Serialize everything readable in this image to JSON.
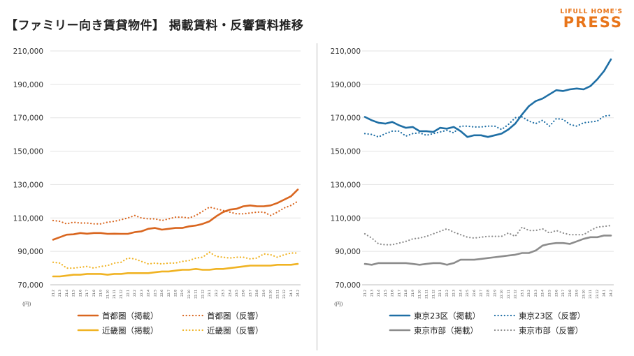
{
  "title": "【ファミリー向き賃貸物件】 掲載賃料・反響賃料推移",
  "logo": {
    "top": "LIFULL HOME'S",
    "bottom": "PRESS",
    "color": "#e8751a"
  },
  "chart_data": [
    {
      "type": "line",
      "unit": "(円)",
      "ylim": [
        70000,
        210000
      ],
      "yticks": [
        "70,000",
        "90,000",
        "110,000",
        "130,000",
        "150,000",
        "170,000",
        "190,000",
        "210,000"
      ],
      "categories": [
        "21.2",
        "21.3",
        "21.4",
        "21.5",
        "21.6",
        "21.7",
        "21.8",
        "21.9",
        "21.10",
        "21.11",
        "21.12",
        "22.1",
        "22.2",
        "22.3",
        "22.4",
        "22.5",
        "22.6",
        "22.7",
        "22.8",
        "22.9",
        "22.10",
        "22.11",
        "22.12",
        "23.1",
        "23.2",
        "23.3",
        "23.4",
        "23.5",
        "23.6",
        "23.7",
        "23.8",
        "23.9",
        "23.10",
        "23.11",
        "23.12",
        "24.1",
        "24.2"
      ],
      "series": [
        {
          "name": "首都圏（掲載）",
          "color": "#d9661f",
          "style": "solid",
          "values": [
            97000,
            98500,
            100000,
            100200,
            101000,
            100600,
            101000,
            101000,
            100500,
            100600,
            100500,
            100500,
            101500,
            102000,
            103500,
            104000,
            103000,
            103500,
            104000,
            104000,
            105000,
            105500,
            106500,
            108000,
            111000,
            113500,
            115000,
            115500,
            117000,
            117500,
            117000,
            117000,
            117500,
            119000,
            121000,
            123000,
            127000
          ]
        },
        {
          "name": "首都圏（反響）",
          "color": "#d9661f",
          "style": "dotted",
          "values": [
            108500,
            108000,
            106500,
            107500,
            107000,
            107000,
            106500,
            106500,
            107500,
            108000,
            109000,
            110000,
            111500,
            110000,
            109500,
            109500,
            108500,
            109500,
            110500,
            110500,
            110000,
            111500,
            114000,
            116500,
            115500,
            114500,
            113500,
            112500,
            112500,
            113000,
            113500,
            113500,
            111500,
            113500,
            116000,
            117500,
            120000
          ]
        },
        {
          "name": "近畿圏（掲載）",
          "color": "#f0b323",
          "style": "solid",
          "values": [
            75000,
            75000,
            75500,
            76000,
            76000,
            76500,
            76500,
            76500,
            76000,
            76500,
            76500,
            77000,
            77000,
            77000,
            77000,
            77500,
            78000,
            78000,
            78500,
            79000,
            79000,
            79500,
            79000,
            79000,
            79500,
            79500,
            80000,
            80500,
            81000,
            81500,
            81500,
            81500,
            81500,
            82000,
            82000,
            82000,
            82500
          ]
        },
        {
          "name": "近畿圏（反響）",
          "color": "#f0b323",
          "style": "dotted",
          "values": [
            83500,
            83000,
            80000,
            80000,
            80500,
            81000,
            80000,
            81000,
            81500,
            83000,
            83500,
            86000,
            85500,
            84000,
            82500,
            83000,
            82500,
            83000,
            83000,
            84000,
            84500,
            86000,
            86500,
            89500,
            87000,
            86500,
            86000,
            86500,
            86500,
            85500,
            86000,
            88500,
            88000,
            86500,
            88000,
            89000,
            89000
          ]
        }
      ]
    },
    {
      "type": "line",
      "unit": "(円)",
      "ylim": [
        70000,
        210000
      ],
      "yticks": [
        "70,000",
        "90,000",
        "110,000",
        "130,000",
        "150,000",
        "170,000",
        "190,000",
        "210,000"
      ],
      "categories": [
        "21.2",
        "21.3",
        "21.4",
        "21.5",
        "21.6",
        "21.7",
        "21.8",
        "21.9",
        "21.10",
        "21.11",
        "21.12",
        "22.1",
        "22.2",
        "22.3",
        "22.4",
        "22.5",
        "22.6",
        "22.7",
        "22.8",
        "22.9",
        "22.10",
        "22.11",
        "22.12",
        "23.1",
        "23.2",
        "23.3",
        "23.4",
        "23.5",
        "23.6",
        "23.7",
        "23.8",
        "23.9",
        "23.10",
        "23.11",
        "23.12",
        "24.1",
        "24.2"
      ],
      "series": [
        {
          "name": "東京23区（掲載）",
          "color": "#1f6fa5",
          "style": "solid",
          "values": [
            170500,
            168500,
            167000,
            166500,
            167500,
            165500,
            164000,
            164500,
            162000,
            162000,
            161500,
            164000,
            163500,
            164500,
            162000,
            158500,
            159500,
            159500,
            158500,
            159500,
            160500,
            163000,
            166500,
            172000,
            177000,
            180000,
            181500,
            184000,
            186500,
            186000,
            187000,
            187500,
            187000,
            189000,
            193000,
            198000,
            205000
          ]
        },
        {
          "name": "東京23区（反響）",
          "color": "#1f6fa5",
          "style": "dotted",
          "values": [
            160500,
            160000,
            158500,
            160500,
            162000,
            162000,
            159000,
            160500,
            161000,
            159500,
            160500,
            161500,
            162500,
            161000,
            165000,
            165000,
            164500,
            164500,
            165000,
            165000,
            163000,
            166000,
            170000,
            170500,
            168000,
            166500,
            168500,
            165000,
            169500,
            169000,
            166000,
            165000,
            167000,
            167500,
            168000,
            171000,
            171500
          ]
        },
        {
          "name": "東京市部（掲載）",
          "color": "#8c8c8c",
          "style": "solid",
          "values": [
            82500,
            82000,
            83000,
            83000,
            83000,
            83000,
            83000,
            82500,
            82000,
            82500,
            83000,
            83000,
            82000,
            83000,
            85000,
            85000,
            85000,
            85500,
            86000,
            86500,
            87000,
            87500,
            88000,
            89000,
            89000,
            90500,
            93500,
            94500,
            95000,
            95000,
            94500,
            96000,
            97500,
            98500,
            98500,
            99500,
            99500
          ]
        },
        {
          "name": "東京市部（反響）",
          "color": "#8c8c8c",
          "style": "dotted",
          "values": [
            100500,
            98000,
            94500,
            94000,
            94000,
            95000,
            96000,
            97500,
            98000,
            99000,
            100500,
            102000,
            103500,
            101500,
            100000,
            98500,
            98000,
            98500,
            99000,
            99000,
            99000,
            101000,
            99000,
            104500,
            102500,
            102500,
            103500,
            101000,
            102500,
            101000,
            100000,
            100000,
            100000,
            102500,
            104500,
            105000,
            105500
          ]
        }
      ]
    }
  ]
}
